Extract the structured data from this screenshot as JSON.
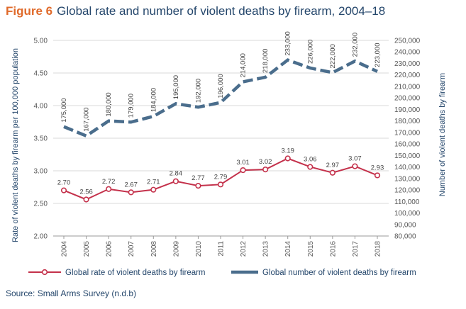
{
  "figure_label": "Figure 6",
  "title": "Global rate and number of violent deaths by firearm, 2004–18",
  "source": "Source: Small Arms Survey (n.d.b)",
  "colors": {
    "rate": "#c4314b",
    "number": "#4a6d8c",
    "text": "#24466b",
    "figure": "#e06a2a"
  },
  "chart_data": {
    "type": "line",
    "categories": [
      "2004",
      "2005",
      "2006",
      "2007",
      "2008",
      "2009",
      "2010",
      "2011",
      "2012",
      "2013",
      "2014",
      "2015",
      "2016",
      "2017",
      "2018"
    ],
    "y_left": {
      "label": "Rate of violent deaths by firearm per 100,000 population",
      "min": 2.0,
      "max": 5.0,
      "ticks": [
        "2.00",
        "2.50",
        "3.00",
        "3.50",
        "4.00",
        "4.50",
        "5.00"
      ]
    },
    "y_right": {
      "label": "Number of violent deaths by firearm",
      "min": 80000,
      "max": 250000,
      "ticks": [
        "80,000",
        "90,000",
        "100,000",
        "110,000",
        "120,000",
        "130,000",
        "140,000",
        "150,000",
        "160,000",
        "170,000",
        "180,000",
        "190,000",
        "200,000",
        "210,000",
        "220,000",
        "230,000",
        "240,000",
        "250,000"
      ]
    },
    "series": [
      {
        "name": "Global rate of violent deaths by firearm",
        "axis": "left",
        "values": [
          2.7,
          2.56,
          2.72,
          2.67,
          2.71,
          2.84,
          2.77,
          2.79,
          3.01,
          3.02,
          3.19,
          3.06,
          2.97,
          3.07,
          2.93
        ],
        "labels": [
          "2.70",
          "2.56",
          "2.72",
          "2.67",
          "2.71",
          "2.84",
          "2.77",
          "2.79",
          "3.01",
          "3.02",
          "3.19",
          "3.06",
          "2.97",
          "3.07",
          "2.93"
        ]
      },
      {
        "name": "Global number of violent deaths by firearm",
        "axis": "right",
        "values": [
          175000,
          167000,
          180000,
          179000,
          184000,
          195000,
          192000,
          196000,
          214000,
          218000,
          233000,
          226000,
          222000,
          232000,
          223000
        ],
        "labels": [
          "175,000",
          "167,000",
          "180,000",
          "179,000",
          "184,000",
          "195,000",
          "192,000",
          "196,000",
          "214,000",
          "218,000",
          "233,000",
          "226,000",
          "222,000",
          "232,000",
          "223,000"
        ]
      }
    ],
    "legend_position": "bottom"
  }
}
